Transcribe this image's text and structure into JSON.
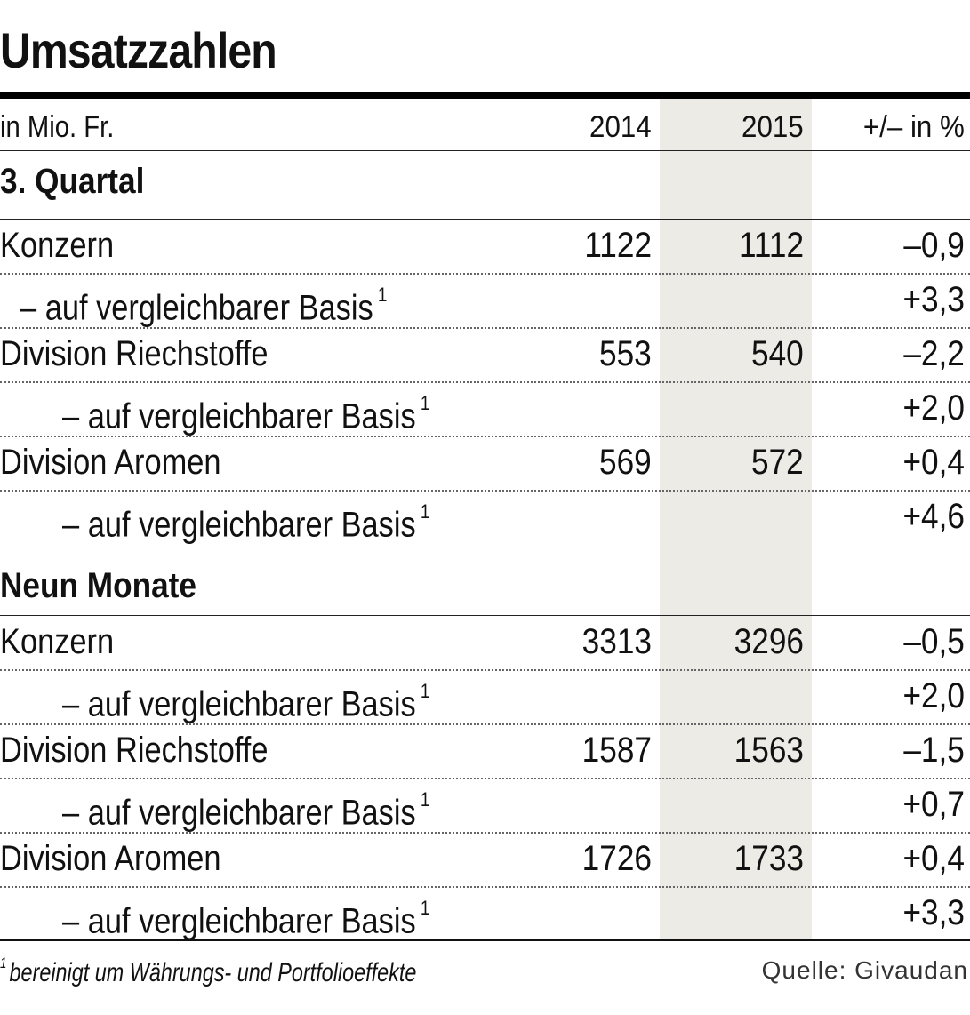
{
  "title": "Umsatzzahlen",
  "header": {
    "unit": "in Mio. Fr.",
    "col1": "2014",
    "col2": "2015",
    "col3": "+/– in %"
  },
  "sections": [
    {
      "heading": "3. Quartal",
      "rows": [
        {
          "label": "Konzern",
          "v2014": "1122",
          "v2015": "1112",
          "change": "–0,9",
          "sup": ""
        },
        {
          "label": "– auf vergleichbarer Basis",
          "v2014": "",
          "v2015": "",
          "change": "+3,3",
          "sup": "1"
        },
        {
          "label": "Division Riechstoffe",
          "v2014": "553",
          "v2015": "540",
          "change": "–2,2",
          "sup": ""
        },
        {
          "label": "– auf vergleichbarer Basis",
          "v2014": "",
          "v2015": "",
          "change": "+2,0",
          "sup": "1"
        },
        {
          "label": "Division Aromen",
          "v2014": "569",
          "v2015": "572",
          "change": "+0,4",
          "sup": ""
        },
        {
          "label": "– auf vergleichbarer Basis",
          "v2014": "",
          "v2015": "",
          "change": "+4,6",
          "sup": "1"
        }
      ]
    },
    {
      "heading": "Neun Monate",
      "rows": [
        {
          "label": "Konzern",
          "v2014": "3313",
          "v2015": "3296",
          "change": "–0,5",
          "sup": ""
        },
        {
          "label": "– auf vergleichbarer Basis",
          "v2014": "",
          "v2015": "",
          "change": "+2,0",
          "sup": "1"
        },
        {
          "label": "Division Riechstoffe",
          "v2014": "1587",
          "v2015": "1563",
          "change": "–1,5",
          "sup": ""
        },
        {
          "label": "– auf vergleichbarer Basis",
          "v2014": "",
          "v2015": "",
          "change": "+0,7",
          "sup": "1"
        },
        {
          "label": "Division Aromen",
          "v2014": "1726",
          "v2015": "1733",
          "change": "+0,4",
          "sup": ""
        },
        {
          "label": "– auf vergleichbarer Basis",
          "v2014": "",
          "v2015": "",
          "change": "+3,3",
          "sup": "1"
        }
      ]
    }
  ],
  "footnote": {
    "marker": "1",
    "text": "bereinigt um Währungs- und Portfolioeffekte"
  },
  "source": "Quelle: Givaudan",
  "colors": {
    "shade": "#ecebe6",
    "text": "#111111",
    "rule": "#000000"
  },
  "chart_data": {
    "type": "table",
    "title": "Umsatzzahlen",
    "columns": [
      "in Mio. Fr.",
      "2014",
      "2015",
      "+/– in %"
    ],
    "groups": [
      {
        "name": "3. Quartal",
        "rows": [
          [
            "Konzern",
            1122,
            1112,
            -0.9
          ],
          [
            "– auf vergleichbarer Basis",
            null,
            null,
            3.3
          ],
          [
            "Division Riechstoffe",
            553,
            540,
            -2.2
          ],
          [
            "– auf vergleichbarer Basis",
            null,
            null,
            2.0
          ],
          [
            "Division Aromen",
            569,
            572,
            0.4
          ],
          [
            "– auf vergleichbarer Basis",
            null,
            null,
            4.6
          ]
        ]
      },
      {
        "name": "Neun Monate",
        "rows": [
          [
            "Konzern",
            3313,
            3296,
            -0.5
          ],
          [
            "– auf vergleichbarer Basis",
            null,
            null,
            2.0
          ],
          [
            "Division Riechstoffe",
            1587,
            1563,
            -1.5
          ],
          [
            "– auf vergleichbarer Basis",
            null,
            null,
            0.7
          ],
          [
            "Division Aromen",
            1726,
            1733,
            0.4
          ],
          [
            "– auf vergleichbarer Basis",
            null,
            null,
            3.3
          ]
        ]
      }
    ]
  }
}
